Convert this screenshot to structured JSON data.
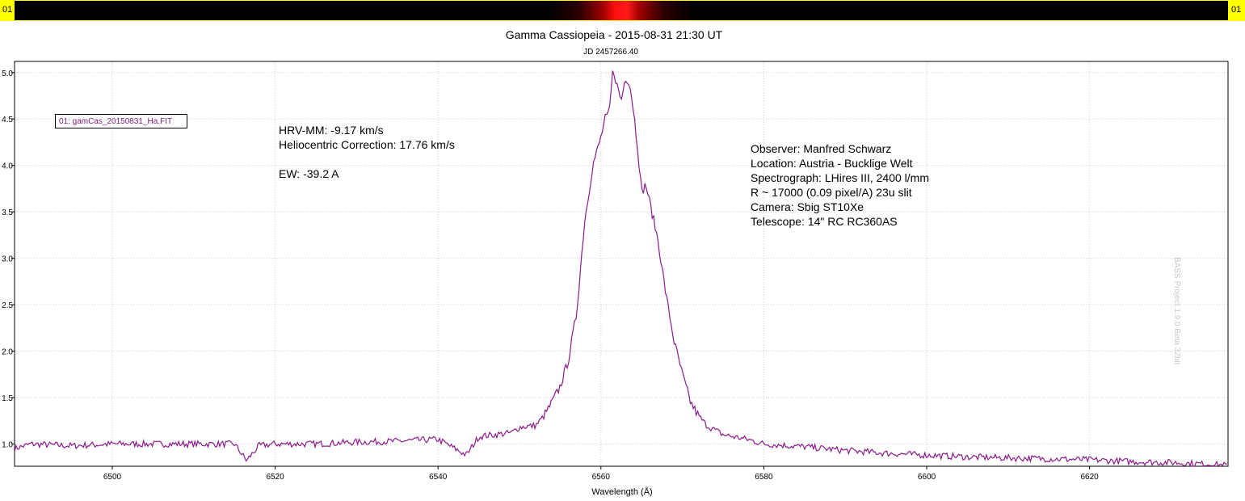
{
  "strip": {
    "left_label": "01",
    "right_label": "01"
  },
  "chart_data": {
    "type": "line",
    "title": "Gamma Cassiopeia - 2015-08-31 21:30 UT",
    "subtitle": "JD 2457266.40",
    "xlabel": "Wavelength (Å)",
    "ylabel": "",
    "xlim": [
      6488,
      6637
    ],
    "ylim": [
      0.76,
      5.12
    ],
    "xticks": [
      "6500",
      "6520",
      "6540",
      "6560",
      "6580",
      "6600",
      "6620"
    ],
    "yticks": [
      "1.0",
      "1.5",
      "2.0",
      "2.5",
      "3.0",
      "3.5",
      "4.0",
      "4.5",
      "5.0"
    ],
    "grid": true,
    "legend_position": "top-left",
    "series": [
      {
        "name": "01: gamCas_20150831_Ha.FIT",
        "color": "#8b1a8b",
        "x": [
          6488,
          6490,
          6495,
          6500,
          6505,
          6510,
          6515,
          6516.5,
          6518,
          6520,
          6525,
          6530,
          6535,
          6540,
          6543.5,
          6545,
          6549,
          6550,
          6552,
          6553,
          6554,
          6555,
          6556,
          6557,
          6557.5,
          6558,
          6559,
          6560,
          6560.5,
          6561,
          6561.5,
          6562,
          6562.5,
          6563,
          6563.5,
          6564,
          6564.5,
          6565,
          6565.5,
          6566,
          6567,
          6568,
          6569,
          6570,
          6571,
          6572,
          6573,
          6575,
          6578,
          6580,
          6585,
          6590,
          6595,
          6600,
          6605,
          6610,
          6615,
          6620,
          6625,
          6630,
          6635,
          6637
        ],
        "y": [
          0.95,
          1.0,
          0.98,
          1.0,
          1.0,
          1.0,
          1.0,
          0.82,
          0.98,
          1.0,
          1.0,
          1.02,
          1.03,
          1.05,
          0.88,
          1.08,
          1.12,
          1.18,
          1.2,
          1.3,
          1.45,
          1.62,
          1.9,
          2.4,
          2.9,
          3.4,
          4.0,
          4.3,
          4.5,
          4.55,
          5.05,
          4.85,
          4.7,
          4.95,
          4.9,
          4.6,
          4.2,
          3.7,
          3.8,
          3.6,
          3.2,
          2.6,
          2.1,
          1.75,
          1.45,
          1.3,
          1.2,
          1.1,
          1.05,
          1.0,
          0.97,
          0.93,
          0.9,
          0.88,
          0.86,
          0.85,
          0.84,
          0.83,
          0.81,
          0.8,
          0.78,
          0.77
        ]
      }
    ]
  },
  "annotations": {
    "rv": [
      "HRV-MM: -9.17 km/s",
      "Heliocentric Correction: 17.76 km/s",
      "",
      "EW: -39.2 A"
    ],
    "obs": [
      "Observer: Manfred Schwarz",
      "Location: Austria - Bucklige Welt",
      "Spectrograph: LHires III, 2400 l/mm",
      "R ~ 17000 (0.09 pixel/A) 23u slit",
      "Camera: Sbig ST10Xe",
      "Telescope: 14\" RC RC360AS"
    ]
  },
  "watermark": "BASS Project 1.9.0 Beta 32bit"
}
